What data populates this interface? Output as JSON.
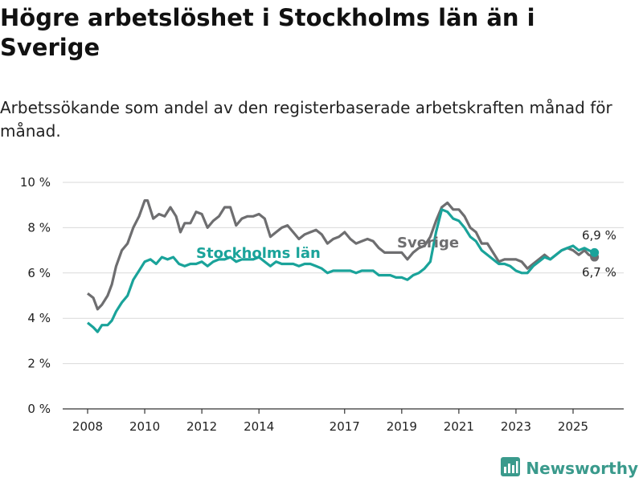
{
  "title": "Högre arbetslöshet i Stockholms län än i Sverige",
  "subtitle": "Arbetssökande som andel av den registerbaserade arbetskraften månad för månad.",
  "brand": {
    "name": "Newsworthy",
    "icon": "bar-chart-logo-icon"
  },
  "colors": {
    "stockholm": "#1aa39a",
    "sverige": "#6e6e70",
    "grid": "#d9d9d9"
  },
  "chart_data": {
    "type": "line",
    "title": "Högre arbetslöshet i Stockholms län än i Sverige",
    "xlabel": "",
    "ylabel": "",
    "ylim": [
      0,
      10
    ],
    "xlim": [
      2007.9,
      2026.0
    ],
    "y_ticks": [
      {
        "value": 0,
        "label": "0 %"
      },
      {
        "value": 2,
        "label": "2 %"
      },
      {
        "value": 4,
        "label": "4 %"
      },
      {
        "value": 6,
        "label": "6 %"
      },
      {
        "value": 8,
        "label": "8 %"
      },
      {
        "value": 10,
        "label": "10 %"
      }
    ],
    "x_ticks": [
      {
        "value": 2008,
        "label": "2008"
      },
      {
        "value": 2010,
        "label": "2010"
      },
      {
        "value": 2012,
        "label": "2012"
      },
      {
        "value": 2014,
        "label": "2014"
      },
      {
        "value": 2017,
        "label": "2017"
      },
      {
        "value": 2019,
        "label": "2019"
      },
      {
        "value": 2021,
        "label": "2021"
      },
      {
        "value": 2023,
        "label": "2023"
      },
      {
        "value": 2025,
        "label": "2025"
      }
    ],
    "series": [
      {
        "name": "Sverige",
        "color": "#6e6e70",
        "end_label": "6,7 %",
        "points": [
          [
            2008.0,
            5.1
          ],
          [
            2008.2,
            4.9
          ],
          [
            2008.35,
            4.4
          ],
          [
            2008.5,
            4.6
          ],
          [
            2008.7,
            5.0
          ],
          [
            2008.85,
            5.5
          ],
          [
            2009.0,
            6.3
          ],
          [
            2009.2,
            7.0
          ],
          [
            2009.4,
            7.3
          ],
          [
            2009.6,
            8.0
          ],
          [
            2009.8,
            8.5
          ],
          [
            2010.0,
            9.2
          ],
          [
            2010.1,
            9.2
          ],
          [
            2010.3,
            8.4
          ],
          [
            2010.5,
            8.6
          ],
          [
            2010.7,
            8.5
          ],
          [
            2010.9,
            8.9
          ],
          [
            2011.1,
            8.5
          ],
          [
            2011.25,
            7.8
          ],
          [
            2011.4,
            8.2
          ],
          [
            2011.6,
            8.2
          ],
          [
            2011.8,
            8.7
          ],
          [
            2012.0,
            8.6
          ],
          [
            2012.2,
            8.0
          ],
          [
            2012.4,
            8.3
          ],
          [
            2012.6,
            8.5
          ],
          [
            2012.8,
            8.9
          ],
          [
            2013.0,
            8.9
          ],
          [
            2013.2,
            8.1
          ],
          [
            2013.4,
            8.4
          ],
          [
            2013.6,
            8.5
          ],
          [
            2013.8,
            8.5
          ],
          [
            2014.0,
            8.6
          ],
          [
            2014.2,
            8.4
          ],
          [
            2014.4,
            7.6
          ],
          [
            2014.6,
            7.8
          ],
          [
            2014.8,
            8.0
          ],
          [
            2015.0,
            8.1
          ],
          [
            2015.2,
            7.8
          ],
          [
            2015.4,
            7.5
          ],
          [
            2015.6,
            7.7
          ],
          [
            2015.8,
            7.8
          ],
          [
            2016.0,
            7.9
          ],
          [
            2016.2,
            7.7
          ],
          [
            2016.4,
            7.3
          ],
          [
            2016.6,
            7.5
          ],
          [
            2016.8,
            7.6
          ],
          [
            2017.0,
            7.8
          ],
          [
            2017.2,
            7.5
          ],
          [
            2017.4,
            7.3
          ],
          [
            2017.6,
            7.4
          ],
          [
            2017.8,
            7.5
          ],
          [
            2018.0,
            7.4
          ],
          [
            2018.2,
            7.1
          ],
          [
            2018.4,
            6.9
          ],
          [
            2018.6,
            6.9
          ],
          [
            2018.8,
            6.9
          ],
          [
            2019.0,
            6.9
          ],
          [
            2019.2,
            6.6
          ],
          [
            2019.4,
            6.9
          ],
          [
            2019.6,
            7.1
          ],
          [
            2019.8,
            7.2
          ],
          [
            2020.0,
            7.6
          ],
          [
            2020.2,
            8.3
          ],
          [
            2020.4,
            8.9
          ],
          [
            2020.6,
            9.1
          ],
          [
            2020.8,
            8.8
          ],
          [
            2021.0,
            8.8
          ],
          [
            2021.2,
            8.5
          ],
          [
            2021.4,
            8.0
          ],
          [
            2021.6,
            7.8
          ],
          [
            2021.8,
            7.3
          ],
          [
            2022.0,
            7.3
          ],
          [
            2022.2,
            6.9
          ],
          [
            2022.4,
            6.5
          ],
          [
            2022.6,
            6.6
          ],
          [
            2022.8,
            6.6
          ],
          [
            2023.0,
            6.6
          ],
          [
            2023.2,
            6.5
          ],
          [
            2023.4,
            6.2
          ],
          [
            2023.6,
            6.4
          ],
          [
            2023.8,
            6.6
          ],
          [
            2024.0,
            6.8
          ],
          [
            2024.2,
            6.6
          ],
          [
            2024.4,
            6.8
          ],
          [
            2024.6,
            7.0
          ],
          [
            2024.8,
            7.1
          ],
          [
            2025.0,
            7.0
          ],
          [
            2025.2,
            6.8
          ],
          [
            2025.4,
            7.0
          ],
          [
            2025.55,
            6.8
          ],
          [
            2025.75,
            6.7
          ]
        ]
      },
      {
        "name": "Stockholms län",
        "color": "#1aa39a",
        "end_label": "6,9 %",
        "points": [
          [
            2008.0,
            3.8
          ],
          [
            2008.2,
            3.6
          ],
          [
            2008.35,
            3.4
          ],
          [
            2008.5,
            3.7
          ],
          [
            2008.7,
            3.7
          ],
          [
            2008.85,
            3.9
          ],
          [
            2009.0,
            4.3
          ],
          [
            2009.2,
            4.7
          ],
          [
            2009.4,
            5.0
          ],
          [
            2009.6,
            5.7
          ],
          [
            2009.8,
            6.1
          ],
          [
            2010.0,
            6.5
          ],
          [
            2010.2,
            6.6
          ],
          [
            2010.4,
            6.4
          ],
          [
            2010.6,
            6.7
          ],
          [
            2010.8,
            6.6
          ],
          [
            2011.0,
            6.7
          ],
          [
            2011.2,
            6.4
          ],
          [
            2011.4,
            6.3
          ],
          [
            2011.6,
            6.4
          ],
          [
            2011.8,
            6.4
          ],
          [
            2012.0,
            6.5
          ],
          [
            2012.2,
            6.3
          ],
          [
            2012.4,
            6.5
          ],
          [
            2012.6,
            6.6
          ],
          [
            2012.8,
            6.6
          ],
          [
            2013.0,
            6.7
          ],
          [
            2013.2,
            6.5
          ],
          [
            2013.4,
            6.6
          ],
          [
            2013.6,
            6.6
          ],
          [
            2013.8,
            6.6
          ],
          [
            2014.0,
            6.7
          ],
          [
            2014.2,
            6.5
          ],
          [
            2014.4,
            6.3
          ],
          [
            2014.6,
            6.5
          ],
          [
            2014.8,
            6.4
          ],
          [
            2015.0,
            6.4
          ],
          [
            2015.2,
            6.4
          ],
          [
            2015.4,
            6.3
          ],
          [
            2015.6,
            6.4
          ],
          [
            2015.8,
            6.4
          ],
          [
            2016.0,
            6.3
          ],
          [
            2016.2,
            6.2
          ],
          [
            2016.4,
            6.0
          ],
          [
            2016.6,
            6.1
          ],
          [
            2016.8,
            6.1
          ],
          [
            2017.0,
            6.1
          ],
          [
            2017.2,
            6.1
          ],
          [
            2017.4,
            6.0
          ],
          [
            2017.6,
            6.1
          ],
          [
            2017.8,
            6.1
          ],
          [
            2018.0,
            6.1
          ],
          [
            2018.2,
            5.9
          ],
          [
            2018.4,
            5.9
          ],
          [
            2018.6,
            5.9
          ],
          [
            2018.8,
            5.8
          ],
          [
            2019.0,
            5.8
          ],
          [
            2019.2,
            5.7
          ],
          [
            2019.4,
            5.9
          ],
          [
            2019.6,
            6.0
          ],
          [
            2019.8,
            6.2
          ],
          [
            2020.0,
            6.5
          ],
          [
            2020.2,
            7.8
          ],
          [
            2020.4,
            8.8
          ],
          [
            2020.6,
            8.7
          ],
          [
            2020.8,
            8.4
          ],
          [
            2021.0,
            8.3
          ],
          [
            2021.2,
            8.0
          ],
          [
            2021.4,
            7.6
          ],
          [
            2021.6,
            7.4
          ],
          [
            2021.8,
            7.0
          ],
          [
            2022.0,
            6.8
          ],
          [
            2022.2,
            6.6
          ],
          [
            2022.4,
            6.4
          ],
          [
            2022.6,
            6.4
          ],
          [
            2022.8,
            6.3
          ],
          [
            2023.0,
            6.1
          ],
          [
            2023.2,
            6.0
          ],
          [
            2023.4,
            6.0
          ],
          [
            2023.6,
            6.3
          ],
          [
            2023.8,
            6.5
          ],
          [
            2024.0,
            6.7
          ],
          [
            2024.2,
            6.6
          ],
          [
            2024.4,
            6.8
          ],
          [
            2024.6,
            7.0
          ],
          [
            2024.8,
            7.1
          ],
          [
            2025.0,
            7.2
          ],
          [
            2025.2,
            7.0
          ],
          [
            2025.4,
            7.1
          ],
          [
            2025.55,
            7.0
          ],
          [
            2025.75,
            6.9
          ]
        ]
      }
    ],
    "annotations": [
      {
        "text": "Stockholms län",
        "series": "Stockholms län"
      },
      {
        "text": "Sverige",
        "series": "Sverige"
      }
    ]
  }
}
